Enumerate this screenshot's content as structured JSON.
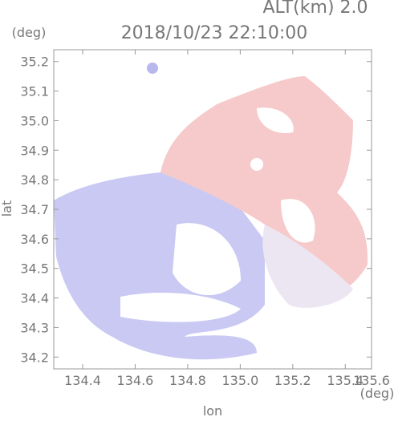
{
  "chart_data": {
    "type": "map",
    "title": "2018/10/23 22:10:00",
    "altitude_label": "ALT(km) 2.0",
    "x_label": "lon",
    "y_label": "lat",
    "x_unit": "(deg)",
    "y_unit": "(deg)",
    "xlim": [
      134.29,
      135.5
    ],
    "xticks": [
      134.4,
      134.6,
      134.8,
      {
        "value": 135.0,
        "label": "135.0"
      },
      135.2,
      135.4,
      135.6
    ],
    "ylim": [
      34.16,
      35.24
    ],
    "yticks": [
      34.2,
      34.3,
      34.4,
      34.5,
      34.6,
      34.7,
      34.8,
      34.9,
      {
        "value": 35.0,
        "label": "35.0"
      },
      35.1,
      35.2
    ]
  }
}
